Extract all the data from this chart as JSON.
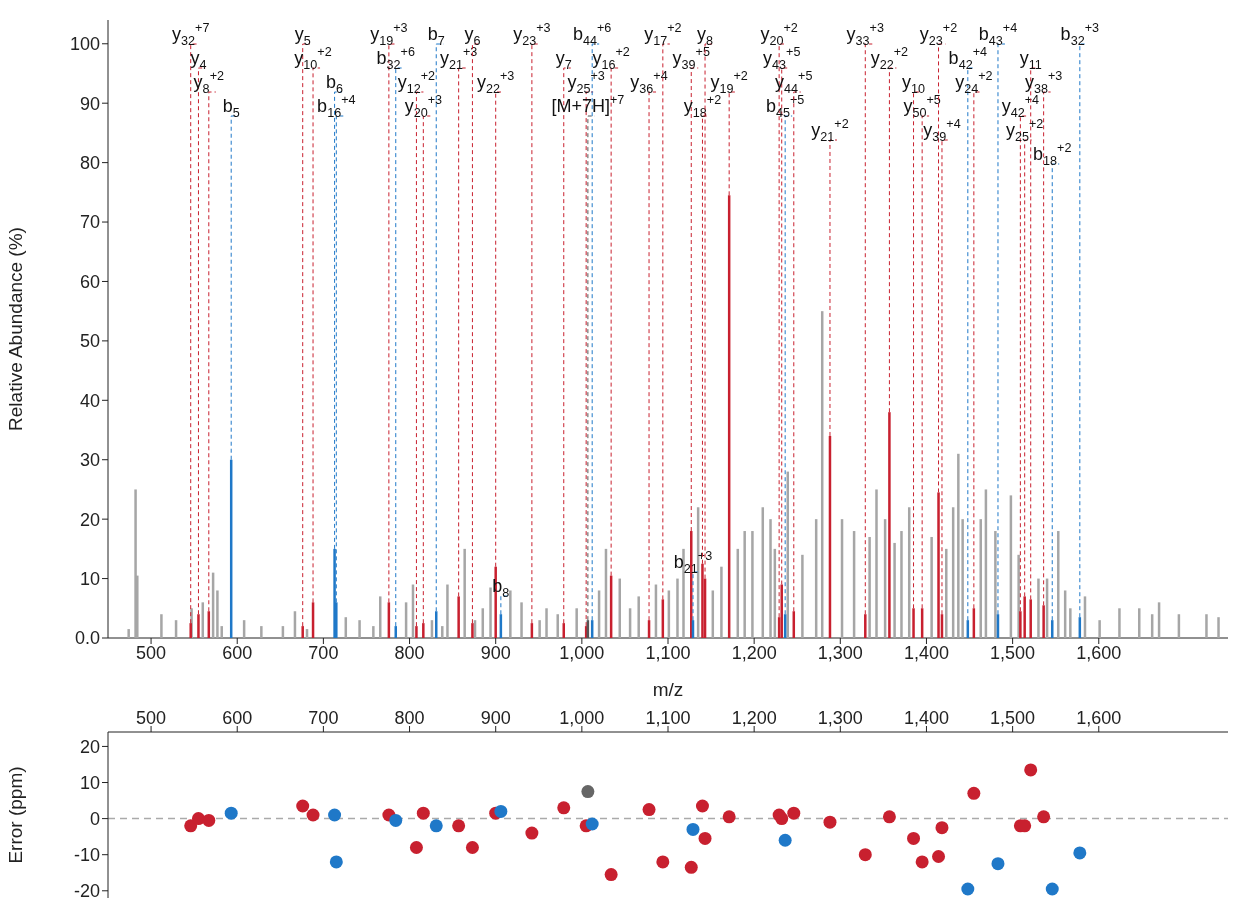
{
  "chart_data": [
    {
      "type": "bar",
      "ylabel": "Relative Abundance (%)",
      "xlabel": "m/z",
      "xlim": [
        450,
        1750
      ],
      "xticks": [
        500,
        600,
        700,
        800,
        900,
        {
          "value": 1000,
          "label": "1,000"
        },
        {
          "value": 1100,
          "label": "1,100"
        },
        {
          "value": 1200,
          "label": "1,200"
        },
        {
          "value": 1300,
          "label": "1,300"
        },
        {
          "value": 1400,
          "label": "1,400"
        },
        {
          "value": 1500,
          "label": "1,500"
        },
        {
          "value": 1600,
          "label": "1,600"
        }
      ],
      "ylim": [
        0,
        104
      ],
      "yticks": [
        {
          "value": 0,
          "label": "0.0"
        },
        10,
        20,
        30,
        40,
        50,
        60,
        70,
        80,
        90,
        100
      ],
      "grid": false,
      "legend": false,
      "series": [
        {
          "color": "#a6a6a6",
          "x": [
            474,
            482,
            484,
            512,
            529,
            547,
            560,
            572,
            577,
            582,
            608,
            628,
            653,
            667,
            681,
            726,
            742,
            758,
            766,
            796,
            804,
            826,
            838,
            844,
            864,
            876,
            885,
            894,
            917,
            930,
            951,
            959,
            972,
            994,
            1020,
            1028,
            1044,
            1056,
            1066,
            1086,
            1101,
            1111,
            1118,
            1135,
            1152,
            1162,
            1181,
            1189,
            1198,
            1210,
            1219,
            1224,
            1239,
            1256,
            1272,
            1279,
            1302,
            1316,
            1334,
            1342,
            1352,
            1363,
            1371,
            1380,
            1406,
            1423,
            1431,
            1437,
            1442,
            1463,
            1469,
            1480,
            1498,
            1507,
            1530,
            1540,
            1553,
            1561,
            1567,
            1584,
            1601,
            1624,
            1647,
            1662,
            1670,
            1693,
            1725,
            1739
          ],
          "values": [
            1.5,
            25,
            10.5,
            4,
            3,
            5,
            6,
            11,
            8,
            2,
            3,
            2,
            2,
            4.5,
            1.5,
            3.5,
            3,
            2,
            7,
            6,
            9,
            3,
            2,
            9,
            15,
            3,
            5,
            8.5,
            8,
            6,
            3,
            5,
            4,
            5,
            8,
            15,
            10,
            5,
            7,
            9,
            8,
            10,
            15,
            22,
            8,
            12,
            15,
            18,
            18,
            22,
            20,
            15,
            28,
            14,
            20,
            55,
            20,
            18,
            17,
            25,
            20,
            16,
            18,
            22,
            17,
            15,
            22,
            31,
            20,
            20,
            25,
            18,
            24,
            14,
            10,
            10,
            18,
            8,
            5,
            7,
            3,
            5,
            5,
            4,
            6,
            4,
            4,
            3.5
          ]
        },
        {
          "color": "#c8202f",
          "x": [
            546,
            555,
            567,
            676,
            688,
            776,
            808,
            816,
            857,
            873,
            900,
            942,
            979,
            1005,
            1034,
            1078,
            1094,
            1127,
            1140,
            1143,
            1171,
            1229,
            1232,
            1246,
            1288,
            1329,
            1357,
            1385,
            1395,
            1414,
            1418,
            1455,
            1509,
            1514,
            1521,
            1536
          ],
          "values": [
            2.5,
            4,
            4.5,
            2,
            6,
            6,
            2,
            2.5,
            7,
            2.5,
            12,
            2.5,
            2.5,
            2,
            10.5,
            3,
            6.5,
            18,
            12.5,
            10,
            74.5,
            3.5,
            9,
            4.5,
            34,
            4,
            38,
            5,
            5,
            24.5,
            4,
            5,
            4.5,
            7,
            6.5,
            5.5
          ]
        },
        {
          "color": "#1f78c8",
          "x": [
            593,
            713,
            715,
            784,
            831,
            906,
            1012,
            1129,
            1236,
            1448,
            1483,
            1546,
            1578
          ],
          "values": [
            30,
            15,
            6,
            2,
            4.5,
            4,
            3,
            3,
            4,
            3,
            4,
            3,
            3.5
          ]
        },
        {
          "color": "#555555",
          "x": [
            1007
          ],
          "values": [
            3
          ]
        }
      ],
      "annotations": [
        {
          "text": "y$_{32}$$^{+7}$",
          "x": 546,
          "y": 2.5
        },
        {
          "text": "y$_{4}$",
          "x": 555,
          "y": 4
        },
        {
          "text": "y$_{8}$$^{+2}$",
          "x": 567,
          "y": 4.5
        },
        {
          "text": "y$_{5}$",
          "x": 676,
          "y": 2
        },
        {
          "text": "y$_{10}$$^{+2}$",
          "x": 688,
          "y": 6
        },
        {
          "text": "y$_{19}$$^{+3}$",
          "x": 776,
          "y": 6
        },
        {
          "text": "y$_{12}$$^{+2}$",
          "x": 808,
          "y": 2
        },
        {
          "text": "y$_{20}$$^{+3}$",
          "x": 816,
          "y": 2.5
        },
        {
          "text": "y$_{21}$$^{+3}$",
          "x": 857,
          "y": 7
        },
        {
          "text": "y$_{6}$",
          "x": 873,
          "y": 2.5
        },
        {
          "text": "y$_{22}$$^{+3}$",
          "x": 900,
          "y": 12
        },
        {
          "text": "y$_{23}$$^{+3}$",
          "x": 942,
          "y": 2.5
        },
        {
          "text": "y$_{7}$",
          "x": 979,
          "y": 2.5
        },
        {
          "text": "y$_{25}$$^{+3}$",
          "x": 1005,
          "y": 2
        },
        {
          "text": "y$_{16}$$^{+2}$",
          "x": 1034,
          "y": 10.5
        },
        {
          "text": "y$_{36}$$^{+4}$",
          "x": 1078,
          "y": 3
        },
        {
          "text": "y$_{17}$$^{+2}$",
          "x": 1094,
          "y": 6.5
        },
        {
          "text": "y$_{39}$$^{+5}$",
          "x": 1127,
          "y": 18
        },
        {
          "text": "y$_{18}$$^{+2}$",
          "x": 1140,
          "y": 12.5
        },
        {
          "text": "y$_{8}$",
          "x": 1143,
          "y": 10
        },
        {
          "text": "y$_{19}$$^{+2}$",
          "x": 1171,
          "y": 74.5
        },
        {
          "text": "y$_{20}$$^{+2}$",
          "x": 1229,
          "y": 3.5
        },
        {
          "text": "y$_{43}$$^{+5}$",
          "x": 1232,
          "y": 9
        },
        {
          "text": "y$_{44}$$^{+5}$",
          "x": 1246,
          "y": 4.5
        },
        {
          "text": "y$_{21}$$^{+2}$",
          "x": 1288,
          "y": 34
        },
        {
          "text": "y$_{33}$$^{+3}$",
          "x": 1329,
          "y": 4
        },
        {
          "text": "y$_{22}$$^{+2}$",
          "x": 1357,
          "y": 38
        },
        {
          "text": "y$_{10}$",
          "x": 1385,
          "y": 5
        },
        {
          "text": "y$_{50}$$^{+5}$",
          "x": 1395,
          "y": 5
        },
        {
          "text": "y$_{23}$$^{+2}$",
          "x": 1414,
          "y": 24.5
        },
        {
          "text": "y$_{39}$$^{+4}$",
          "x": 1418,
          "y": 4
        },
        {
          "text": "y$_{24}$$^{+2}$",
          "x": 1455,
          "y": 5
        },
        {
          "text": "y$_{42}$$^{+4}$",
          "x": 1509,
          "y": 4.5
        },
        {
          "text": "y$_{25}$$^{+2}$",
          "x": 1514,
          "y": 7
        },
        {
          "text": "y$_{11}$",
          "x": 1521,
          "y": 6.5
        },
        {
          "text": "y$_{38}$$^{+3}$",
          "x": 1536,
          "y": 5.5
        },
        {
          "text": "b$_{5}$",
          "x": 593,
          "y": 30
        },
        {
          "text": "b$_{6}$",
          "x": 713,
          "y": 15
        },
        {
          "text": "b$_{16}$$^{+4}$",
          "x": 715,
          "y": 6
        },
        {
          "text": "b$_{32}$$^{+6}$",
          "x": 784,
          "y": 2
        },
        {
          "text": "b$_{7}$",
          "x": 831,
          "y": 4.5
        },
        {
          "text": "b$_{8}$",
          "x": 906,
          "y": 4
        },
        {
          "text": "b$_{44}$$^{+6}$",
          "x": 1012,
          "y": 3
        },
        {
          "text": "b$_{21}$$^{+3}$",
          "x": 1129,
          "y": 3
        },
        {
          "text": "b$_{45}$$^{+5}$",
          "x": 1236,
          "y": 4
        },
        {
          "text": "b$_{42}$$^{+4}$",
          "x": 1448,
          "y": 3
        },
        {
          "text": "b$_{43}$$^{+4}$",
          "x": 1483,
          "y": 4
        },
        {
          "text": "b$_{18}$$^{+2}$",
          "x": 1546,
          "y": 3
        },
        {
          "text": "b$_{32}$$^{+3}$",
          "x": 1578,
          "y": 3.5
        },
        {
          "text": "[M+7H]$^{+7}$",
          "x": 1007,
          "y": 3
        }
      ]
    },
    {
      "type": "scatter",
      "ylabel": "Error (ppm)",
      "xlim": [
        450,
        1750
      ],
      "xticks": [
        500,
        600,
        700,
        800,
        900,
        {
          "value": 1000,
          "label": "1,000"
        },
        {
          "value": 1100,
          "label": "1,100"
        },
        {
          "value": 1200,
          "label": "1,200"
        },
        {
          "value": 1300,
          "label": "1,300"
        },
        {
          "value": 1400,
          "label": "1,400"
        },
        {
          "value": 1500,
          "label": "1,500"
        },
        {
          "value": 1600,
          "label": "1,600"
        }
      ],
      "ylim": [
        -22,
        24
      ],
      "yticks": [
        -20,
        -10,
        0,
        10,
        20
      ],
      "grid": false,
      "legend": false,
      "marker": "circle",
      "ref_lines": [
        {
          "axis": "y",
          "value": 0,
          "color": "#aaaaaa",
          "line_style": "dashed"
        }
      ],
      "series": [
        {
          "color": "#c8202f",
          "x": [
            546,
            555,
            567,
            676,
            688,
            776,
            808,
            816,
            857,
            873,
            900,
            942,
            979,
            1005,
            1034,
            1078,
            1094,
            1127,
            1140,
            1143,
            1171,
            1229,
            1232,
            1246,
            1288,
            1329,
            1357,
            1385,
            1395,
            1414,
            1418,
            1455,
            1509,
            1514,
            1521,
            1536
          ],
          "values": [
            -2,
            0,
            -0.5,
            3.5,
            1,
            1,
            -8,
            1.5,
            -2,
            -8,
            1.5,
            -4,
            3,
            -2,
            -15.5,
            2.5,
            -12,
            -13.5,
            3.5,
            -5.5,
            0.5,
            1,
            0,
            1.5,
            -1,
            -10,
            0.5,
            -5.5,
            -12,
            -10.5,
            -2.5,
            7,
            -2,
            -2,
            13.5,
            0.5
          ]
        },
        {
          "color": "#1f78c8",
          "x": [
            593,
            713,
            715,
            784,
            831,
            906,
            1012,
            1129,
            1236,
            1448,
            1483,
            1546,
            1578
          ],
          "values": [
            1.5,
            1,
            -12,
            -0.5,
            -2,
            2,
            -1.5,
            -3,
            -6,
            -19.5,
            -12.5,
            -19.5,
            -9.5
          ]
        },
        {
          "color": "#666666",
          "x": [
            1007
          ],
          "values": [
            7.5
          ]
        }
      ]
    }
  ]
}
